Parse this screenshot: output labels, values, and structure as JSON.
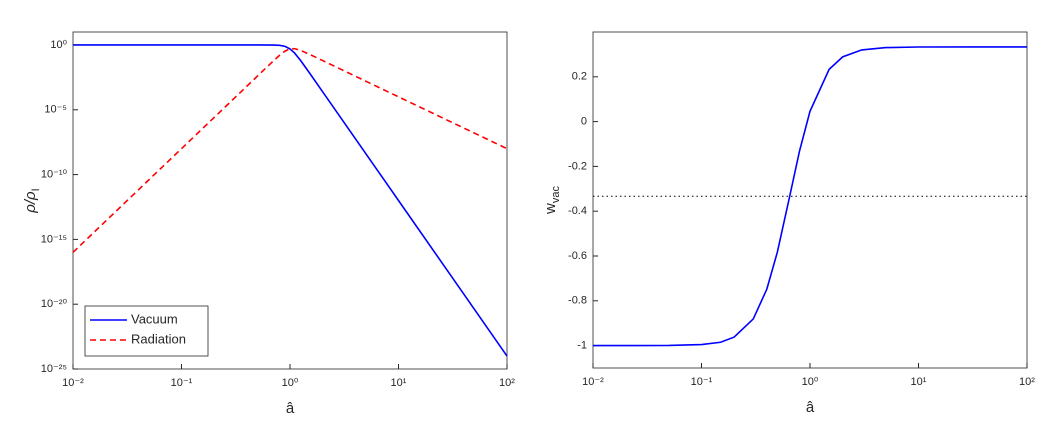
{
  "chart_data": [
    {
      "type": "line",
      "xscale": "log",
      "yscale": "log",
      "xlabel": "â",
      "ylabel": [
        "ρ/ρ",
        "I"
      ],
      "x": [
        0.01,
        0.1,
        0.3,
        0.5,
        0.7,
        0.8,
        0.9,
        1,
        1.1,
        1.25,
        1.5,
        2,
        3,
        5,
        10,
        30,
        100
      ],
      "series": [
        {
          "name": "Vacuum",
          "color": "#0000ff",
          "linestyle": "solid",
          "values": [
            1,
            1,
            1,
            0.99976,
            0.9863,
            0.9357,
            0.7798,
            0.5,
            0.2417,
            0.0643,
            0.00765,
            0.000244,
            1.88e-06,
            4.1e-09,
            1e-12,
            1.88e-18,
            1e-24
          ]
        },
        {
          "name": "Radiation",
          "color": "#ff0000",
          "linestyle": "dashed",
          "values": [
            1e-16,
            1e-08,
            6.56e-05,
            0.003905,
            0.05686,
            0.157,
            0.3357,
            0.5,
            0.518,
            0.383,
            0.196,
            0.0625,
            0.01234,
            0.0016,
            0.0001,
            1.23e-06,
            1e-08
          ]
        }
      ],
      "xlim": [
        0.01,
        100
      ],
      "ylim": [
        1e-25,
        10
      ],
      "xticks": [
        {
          "value": 0.01,
          "label": "10⁻²"
        },
        {
          "value": 0.1,
          "label": "10⁻¹"
        },
        {
          "value": 1,
          "label": "10⁰"
        },
        {
          "value": 10,
          "label": "10¹"
        },
        {
          "value": 100,
          "label": "10²"
        }
      ],
      "yticks": [
        {
          "value": 1e-25,
          "label": "10⁻²⁵"
        },
        {
          "value": 1e-20,
          "label": "10⁻²⁰"
        },
        {
          "value": 1e-15,
          "label": "10⁻¹⁵"
        },
        {
          "value": 1e-10,
          "label": "10⁻¹⁰"
        },
        {
          "value": 1e-05,
          "label": "10⁻⁵"
        },
        {
          "value": 1,
          "label": "10⁰"
        }
      ],
      "legend": "lower left"
    },
    {
      "type": "line",
      "xscale": "log",
      "yscale": "linear",
      "xlabel": "â",
      "ylabel": [
        "w",
        "vac"
      ],
      "x": [
        0.01,
        0.05,
        0.1,
        0.15,
        0.2,
        0.3,
        0.4,
        0.5,
        0.65,
        0.8,
        1,
        1.5,
        2,
        3,
        5,
        10,
        30,
        100
      ],
      "series": [
        {
          "color": "#0000ff",
          "linestyle": "solid",
          "values": [
            -1,
            -0.9994,
            -0.9952,
            -0.985,
            -0.962,
            -0.881,
            -0.748,
            -0.583,
            -0.3333,
            -0.132,
            0.046,
            0.233,
            0.289,
            0.32,
            0.3304,
            0.333,
            0.3333,
            0.3333
          ]
        }
      ],
      "hline": {
        "value": -0.3333,
        "color": "#000000",
        "linestyle": "dotted"
      },
      "xlim": [
        0.01,
        100
      ],
      "ylim": [
        -1.1,
        0.4
      ],
      "xticks": [
        {
          "value": 0.01,
          "label": "10⁻²"
        },
        {
          "value": 0.1,
          "label": "10⁻¹"
        },
        {
          "value": 1,
          "label": "10⁰"
        },
        {
          "value": 10,
          "label": "10¹"
        },
        {
          "value": 100,
          "label": "10²"
        }
      ],
      "yticks": [
        -1,
        -0.8,
        -0.6,
        -0.4,
        -0.2,
        0,
        0.2
      ]
    }
  ]
}
